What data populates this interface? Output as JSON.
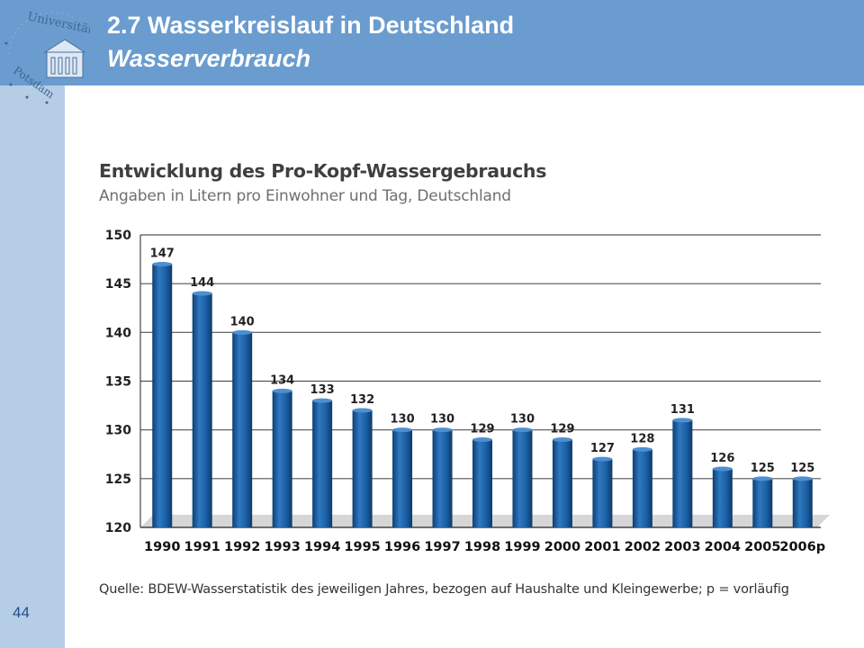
{
  "header": {
    "title": "2.7 Wasserkreislauf in Deutschland",
    "subtitle": "Wasserverbrauch"
  },
  "page_number": "44",
  "colors": {
    "header": "#6a9ccf",
    "sidebar": "#b6cde6",
    "bar": "#1a5fa3"
  },
  "logo_icon": "university-seal-icon",
  "chart_data": {
    "type": "bar",
    "title": "Entwicklung des Pro-Kopf-Wassergebrauchs",
    "subtitle": "Angaben in Litern pro Einwohner und Tag, Deutschland",
    "source": "Quelle: BDEW-Wasserstatistik des jeweiligen Jahres, bezogen auf Haushalte und Kleingewerbe; p = vorläufig",
    "categories": [
      "1990",
      "1991",
      "1992",
      "1993",
      "1994",
      "1995",
      "1996",
      "1997",
      "1998",
      "1999",
      "2000",
      "2001",
      "2002",
      "2003",
      "2004",
      "2005",
      "2006p"
    ],
    "values": [
      147,
      144,
      140,
      134,
      133,
      132,
      130,
      130,
      129,
      130,
      129,
      127,
      128,
      131,
      126,
      125,
      125
    ],
    "ylim": [
      120,
      150
    ],
    "yticks": [
      150,
      145,
      140,
      135,
      130,
      125,
      120
    ],
    "grid": true
  }
}
